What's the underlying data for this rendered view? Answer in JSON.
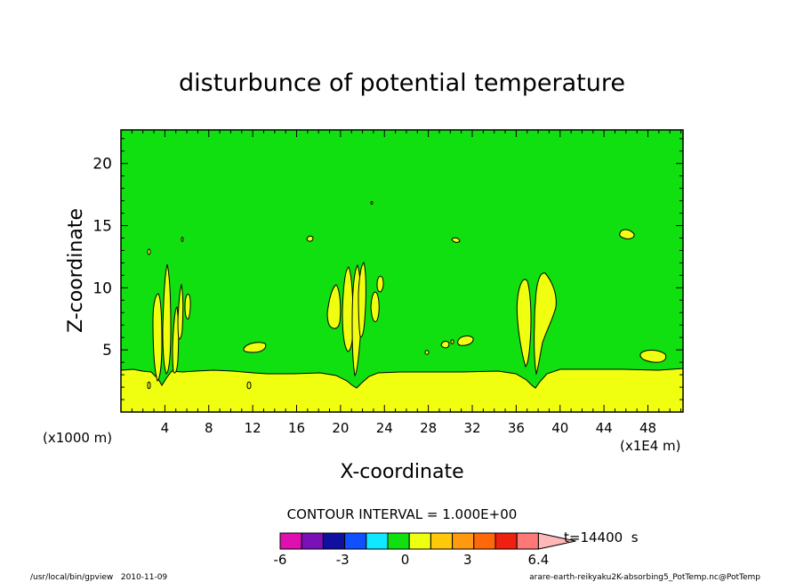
{
  "chart_data": {
    "type": "contour",
    "title": "disturbunce of potential temperature",
    "xlabel": "X-coordinate",
    "ylabel": "Z-coordinate",
    "x_unit_label": "(x1E4 m)",
    "y_unit_label": "(x1000 m)",
    "xlim": [
      0,
      51.2
    ],
    "ylim": [
      0,
      22.7
    ],
    "xticks": [
      "4",
      "8",
      "12",
      "16",
      "20",
      "24",
      "28",
      "32",
      "36",
      "40",
      "44",
      "48"
    ],
    "yticks": [
      "5",
      "10",
      "15",
      "20"
    ],
    "contour_interval_text": "CONTOUR INTERVAL = 1.000E+00",
    "time_text": "t=14400  s",
    "colorbar": {
      "tick_labels": [
        "-6",
        "-3",
        "0",
        "3",
        "6.4"
      ],
      "colors": [
        "#e010b0",
        "#7a10b8",
        "#1010a0",
        "#1050ff",
        "#10e8ff",
        "#10e010",
        "#f0ff10",
        "#ffc808",
        "#ff9a10",
        "#ff6808",
        "#f02010",
        "#ff7878",
        "#ffb8b8"
      ]
    },
    "field_colors": {
      "background": "#10e010",
      "positive": "#f0ff10"
    },
    "footer_left": "/usr/local/bin/gpview   2010-11-09",
    "footer_right": "arare-earth-reikyaku2K-absorbing5_PotTemp.nc@PotTemp",
    "features": [
      {
        "name": "surface-warm-layer",
        "x_range": [
          0,
          51.2
        ],
        "z_top": 3.2
      },
      {
        "name": "plume-1",
        "x": 4.2,
        "z_top": 12.0
      },
      {
        "name": "plume-2",
        "x": 21.5,
        "z_top": 12.2
      },
      {
        "name": "plume-3",
        "x": 37.8,
        "z_top": 11.2
      }
    ]
  }
}
